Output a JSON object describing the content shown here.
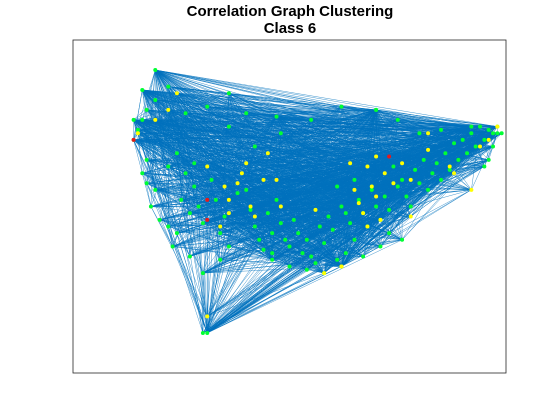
{
  "figure": {
    "title_line1": "Correlation Graph Clustering",
    "title_line2": "Class 6"
  },
  "colors": {
    "edge": "#0072bd",
    "node_green": "#00ff33",
    "node_yellow": "#ffff00",
    "node_red": "#e41a1c",
    "axes_border": "#262626"
  },
  "chart_data": {
    "type": "scatter",
    "title": "Correlation Graph Clustering\nClass 6",
    "xlabel": "",
    "ylabel": "",
    "xlim": [
      0,
      100
    ],
    "ylim": [
      0,
      100
    ],
    "grid": false,
    "axis_ticks": false,
    "series": [
      {
        "color": "green",
        "points": [
          [
            16,
            76
          ],
          [
            14,
            70
          ],
          [
            15,
            73
          ],
          [
            17,
            64
          ],
          [
            16,
            60
          ],
          [
            17,
            57
          ],
          [
            19,
            55
          ],
          [
            18,
            50
          ],
          [
            20,
            46
          ],
          [
            22,
            44
          ],
          [
            24,
            42
          ],
          [
            23,
            38
          ],
          [
            25,
            52
          ],
          [
            27,
            48
          ],
          [
            28,
            56
          ],
          [
            29,
            50
          ],
          [
            30,
            45
          ],
          [
            32,
            58
          ],
          [
            33,
            52
          ],
          [
            34,
            42
          ],
          [
            35,
            47
          ],
          [
            36,
            38
          ],
          [
            38,
            54
          ],
          [
            40,
            55
          ],
          [
            41,
            49
          ],
          [
            42,
            44
          ],
          [
            43,
            40
          ],
          [
            44,
            37
          ],
          [
            45,
            48
          ],
          [
            46,
            42
          ],
          [
            47,
            52
          ],
          [
            48,
            45
          ],
          [
            49,
            40
          ],
          [
            50,
            38
          ],
          [
            51,
            46
          ],
          [
            52,
            42
          ],
          [
            53,
            36
          ],
          [
            54,
            40
          ],
          [
            55,
            35
          ],
          [
            56,
            33
          ],
          [
            57,
            44
          ],
          [
            58,
            39
          ],
          [
            59,
            47
          ],
          [
            60,
            43
          ],
          [
            61,
            56
          ],
          [
            62,
            50
          ],
          [
            63,
            48
          ],
          [
            64,
            45
          ],
          [
            65,
            58
          ],
          [
            66,
            52
          ],
          [
            67,
            48
          ],
          [
            68,
            44
          ],
          [
            69,
            55
          ],
          [
            70,
            50
          ],
          [
            71,
            46
          ],
          [
            72,
            53
          ],
          [
            73,
            49
          ],
          [
            74,
            62
          ],
          [
            75,
            56
          ],
          [
            76,
            58
          ],
          [
            77,
            53
          ],
          [
            78,
            50
          ],
          [
            79,
            61
          ],
          [
            80,
            57
          ],
          [
            81,
            64
          ],
          [
            82,
            55
          ],
          [
            83,
            60
          ],
          [
            84,
            63
          ],
          [
            85,
            58
          ],
          [
            86,
            66
          ],
          [
            87,
            61
          ],
          [
            88,
            69
          ],
          [
            89,
            64
          ],
          [
            90,
            70
          ],
          [
            91,
            66
          ],
          [
            92,
            72
          ],
          [
            93,
            68
          ],
          [
            94,
            74
          ],
          [
            95,
            70
          ],
          [
            96,
            73
          ],
          [
            97,
            72
          ],
          [
            98,
            74
          ],
          [
            96,
            64
          ],
          [
            95,
            62
          ],
          [
            97,
            68
          ],
          [
            99,
            72
          ],
          [
            85,
            73
          ],
          [
            80,
            72
          ],
          [
            75,
            76
          ],
          [
            70,
            79
          ],
          [
            62,
            80
          ],
          [
            55,
            76
          ],
          [
            48,
            72
          ],
          [
            40,
            78
          ],
          [
            36,
            74
          ],
          [
            31,
            80
          ],
          [
            26,
            78
          ],
          [
            22,
            86
          ],
          [
            17,
            79
          ],
          [
            19,
            82
          ],
          [
            36,
            84
          ],
          [
            42,
            68
          ],
          [
            46,
            36
          ],
          [
            50,
            32
          ],
          [
            54,
            31
          ],
          [
            58,
            30
          ],
          [
            61,
            34
          ],
          [
            27,
            35
          ],
          [
            30,
            30
          ],
          [
            34,
            34
          ],
          [
            22,
            62
          ],
          [
            24,
            66
          ],
          [
            26,
            60
          ],
          [
            28,
            63
          ],
          [
            65,
            40
          ],
          [
            67,
            35
          ],
          [
            71,
            38
          ],
          [
            73,
            42
          ],
          [
            76,
            40
          ],
          [
            63,
            36
          ],
          [
            30,
            12
          ]
        ]
      },
      {
        "color": "yellow",
        "points": [
          [
            15,
            72
          ],
          [
            19,
            76
          ],
          [
            31,
            62
          ],
          [
            35,
            56
          ],
          [
            36,
            48
          ],
          [
            38,
            57
          ],
          [
            39,
            60
          ],
          [
            40,
            63
          ],
          [
            41,
            50
          ],
          [
            42,
            47
          ],
          [
            44,
            58
          ],
          [
            45,
            66
          ],
          [
            36,
            52
          ],
          [
            34,
            44
          ],
          [
            47,
            58
          ],
          [
            48,
            50
          ],
          [
            64,
            63
          ],
          [
            65,
            55
          ],
          [
            66,
            51
          ],
          [
            67,
            48
          ],
          [
            68,
            62
          ],
          [
            69,
            56
          ],
          [
            70,
            53
          ],
          [
            71,
            46
          ],
          [
            72,
            60
          ],
          [
            74,
            57
          ],
          [
            76,
            63
          ],
          [
            78,
            58
          ],
          [
            82,
            67
          ],
          [
            87,
            62
          ],
          [
            88,
            60
          ],
          [
            92,
            55
          ],
          [
            94,
            68
          ],
          [
            96,
            70
          ],
          [
            98,
            74
          ],
          [
            82,
            72
          ],
          [
            68,
            44
          ],
          [
            62,
            32
          ],
          [
            24,
            84
          ],
          [
            22,
            79
          ],
          [
            58,
            30
          ],
          [
            56,
            49
          ],
          [
            70,
            65
          ],
          [
            78,
            47
          ],
          [
            31,
            17
          ],
          [
            62,
            32
          ]
        ]
      },
      {
        "color": "red",
        "points": [
          [
            14,
            70
          ],
          [
            31,
            52
          ],
          [
            31,
            46
          ],
          [
            73,
            65
          ]
        ]
      }
    ],
    "hub_nodes": [
      [
        16,
        85
      ],
      [
        19,
        91
      ],
      [
        14,
        76
      ],
      [
        47,
        77
      ],
      [
        70,
        79
      ],
      [
        92,
        74
      ],
      [
        98,
        72
      ],
      [
        62,
        32
      ],
      [
        31,
        12
      ],
      [
        46,
        34
      ]
    ]
  }
}
